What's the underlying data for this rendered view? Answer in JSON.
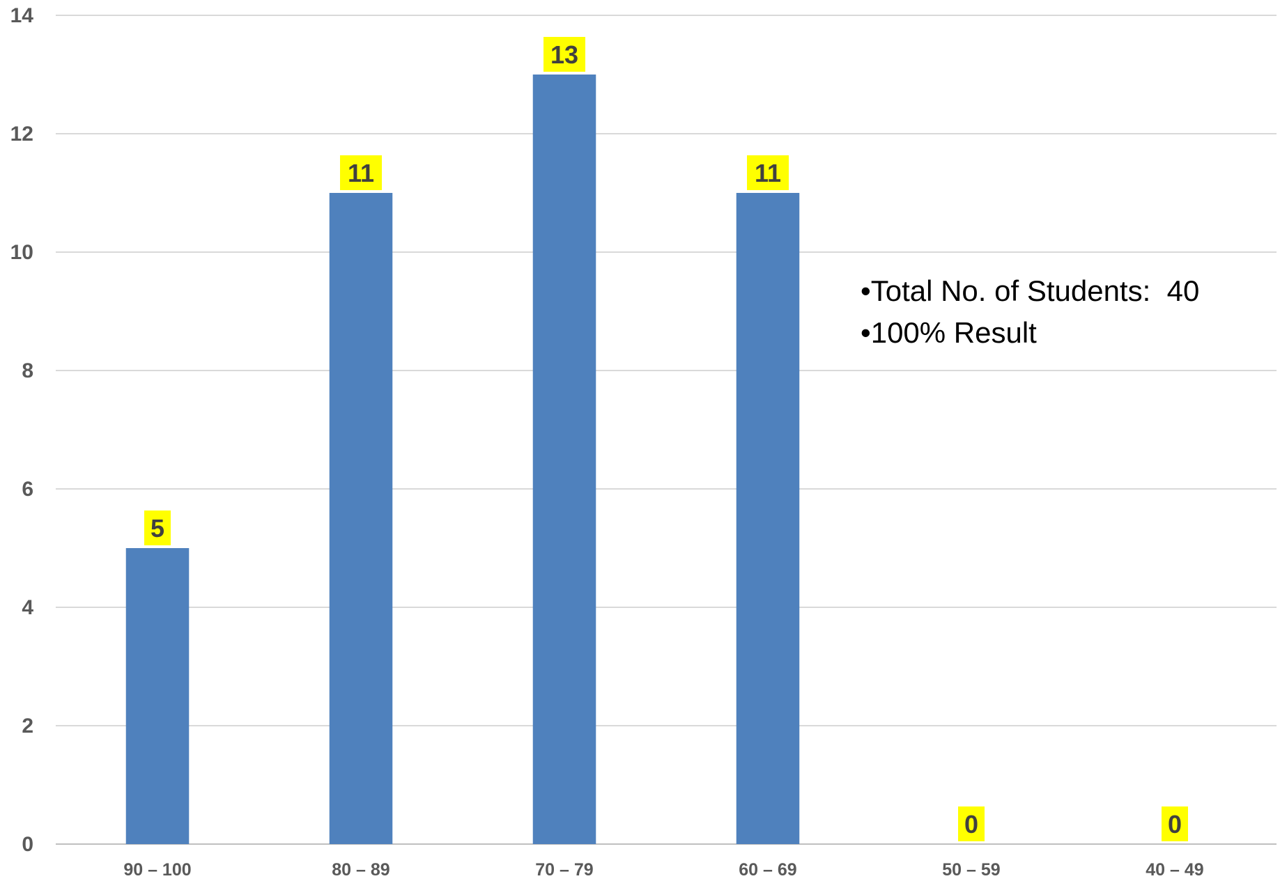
{
  "chart_data": {
    "type": "bar",
    "categories": [
      "90 – 100",
      "80 – 89",
      "70 – 79",
      "60 – 69",
      "50 – 59",
      "40 – 49"
    ],
    "values": [
      5,
      11,
      13,
      11,
      0,
      0
    ],
    "title": "",
    "xlabel": "",
    "ylabel": "",
    "ylim": [
      0,
      14
    ],
    "yticks": [
      0,
      2,
      4,
      6,
      8,
      10,
      12,
      14
    ],
    "grid": true,
    "bar_color": "#4f81bd",
    "data_label_highlight": "#ffff00",
    "annotations": [
      "•Total No. of Students:  40",
      "•100% Result"
    ]
  }
}
